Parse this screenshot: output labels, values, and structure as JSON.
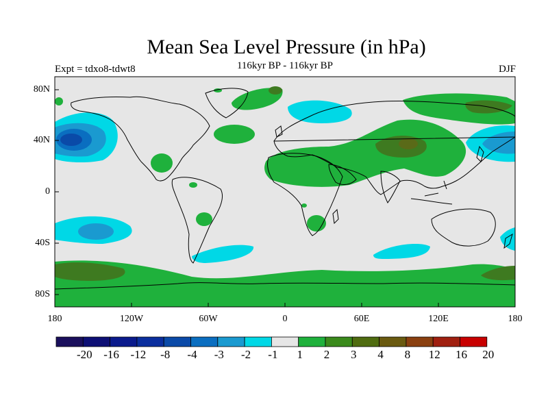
{
  "title": "Mean Sea Level Pressure (in hPa)",
  "subtitle": "116kyr BP - 116kyr BP",
  "left_label": "Expt = tdxo8-tdwt8",
  "right_label": "DJF",
  "axes": {
    "lat_ticks": [
      "80N",
      "40N",
      "0",
      "40S",
      "80S"
    ],
    "lon_ticks": [
      "180",
      "120W",
      "60W",
      "0",
      "60E",
      "120E",
      "180"
    ]
  },
  "colorbar": {
    "labels": [
      "-20",
      "-16",
      "-12",
      "-8",
      "-4",
      "-3",
      "-2",
      "-1",
      "1",
      "2",
      "3",
      "4",
      "8",
      "12",
      "16",
      "20"
    ],
    "colors": [
      "#1a0f5c",
      "#0d0f75",
      "#0a1a8c",
      "#0a2e9e",
      "#0a4aa8",
      "#0a6ec0",
      "#1a9ad0",
      "#00d8e6",
      "#e6e6e6",
      "#1fb13c",
      "#3a8a1c",
      "#4f6c10",
      "#6a5a10",
      "#8a4010",
      "#a02010",
      "#c80000"
    ]
  },
  "colors": {
    "land_neutral": "#e6e6e6",
    "green_light": "#1fb13c",
    "green_dark": "#3e7a20",
    "olive": "#5a6a18",
    "cyan": "#00d8e6",
    "blue_light": "#1a9ad0",
    "blue_mid": "#0a6ec0",
    "blue_dark": "#0a4aa8"
  }
}
